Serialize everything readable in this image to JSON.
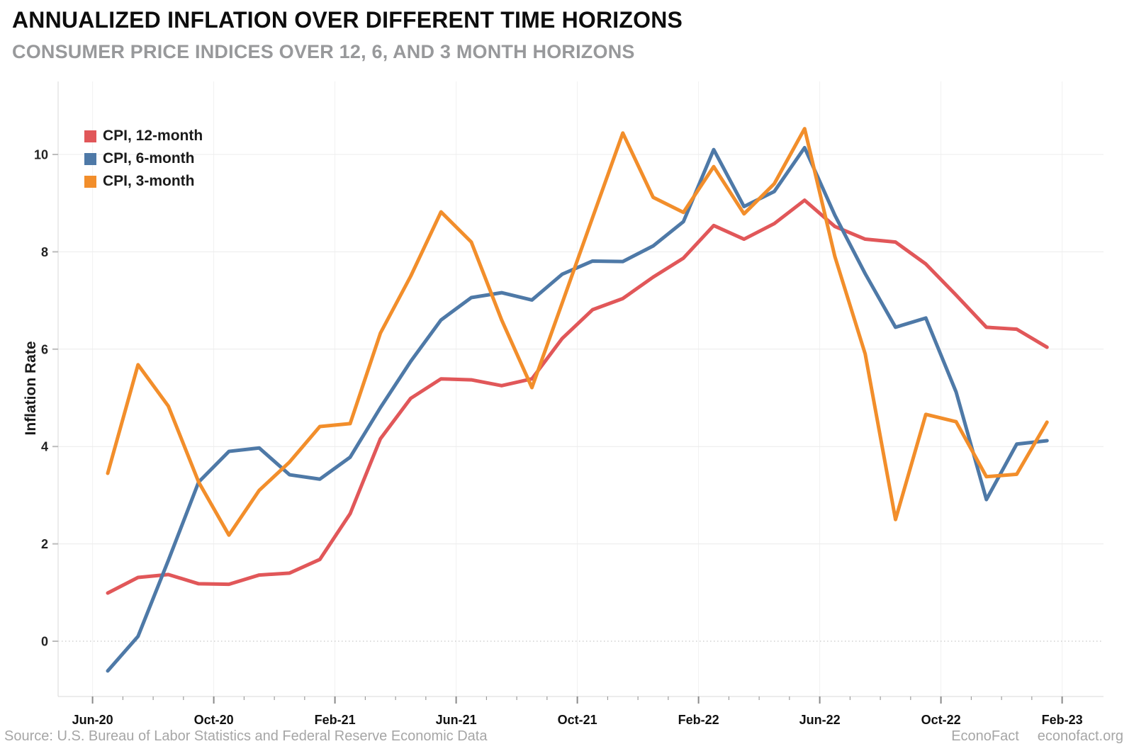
{
  "header": {
    "title": "ANNUALIZED INFLATION OVER DIFFERENT TIME HORIZONS",
    "subtitle": "CONSUMER PRICE INDICES OVER 12, 6, AND 3 MONTH HORIZONS"
  },
  "footer": {
    "source": "Source: U.S. Bureau of Labor Statistics and Federal Reserve Economic Data",
    "brand": "EconoFact",
    "site": "econofact.org"
  },
  "colors": {
    "red": "#e15759",
    "blue": "#4e79a7",
    "orange": "#f28e2b",
    "gridline": "#ececec",
    "zero_line": "#b9b9b9",
    "axis_line": "#d8d8d8",
    "tick": "#8a8a8a"
  },
  "chart_data": {
    "type": "line",
    "title": "ANNUALIZED INFLATION OVER DIFFERENT TIME HORIZONS",
    "subtitle": "CONSUMER PRICE INDICES OVER 12, 6, AND 3 MONTH HORIZONS",
    "xlabel": "",
    "ylabel": "Inflation Rate",
    "ylim": [
      -1.15,
      11.5
    ],
    "grid": "on",
    "legend_position": "top-left",
    "x_tick_labels": [
      "Jun-20",
      "Oct-20",
      "Feb-21",
      "Jun-21",
      "Oct-21",
      "Feb-22",
      "Jun-22",
      "Oct-22",
      "Feb-23"
    ],
    "y_ticks": [
      0,
      2,
      4,
      6,
      8,
      10
    ],
    "x": [
      "Jul-20",
      "Aug-20",
      "Sep-20",
      "Oct-20",
      "Nov-20",
      "Dec-20",
      "Jan-21",
      "Feb-21",
      "Mar-21",
      "Apr-21",
      "May-21",
      "Jun-21",
      "Jul-21",
      "Aug-21",
      "Sep-21",
      "Oct-21",
      "Nov-21",
      "Dec-21",
      "Jan-22",
      "Feb-22",
      "Mar-22",
      "Apr-22",
      "May-22",
      "Jun-22",
      "Jul-22",
      "Aug-22",
      "Sep-22",
      "Oct-22",
      "Nov-22",
      "Dec-22",
      "Jan-23",
      "Feb-23"
    ],
    "series": [
      {
        "name": "CPI, 12-month",
        "color": "#e15759",
        "values": [
          0.99,
          1.31,
          1.37,
          1.18,
          1.17,
          1.36,
          1.4,
          1.68,
          2.62,
          4.16,
          4.99,
          5.39,
          5.37,
          5.25,
          5.39,
          6.22,
          6.81,
          7.04,
          7.48,
          7.87,
          8.54,
          8.26,
          8.58,
          9.06,
          8.52,
          8.26,
          8.2,
          7.75,
          7.11,
          6.45,
          6.41,
          6.04
        ]
      },
      {
        "name": "CPI, 6-month",
        "color": "#4e79a7",
        "values": [
          -0.61,
          0.1,
          1.66,
          3.27,
          3.9,
          3.97,
          3.42,
          3.33,
          3.78,
          4.8,
          5.75,
          6.6,
          7.06,
          7.16,
          7.01,
          7.54,
          7.81,
          7.8,
          8.12,
          8.62,
          10.1,
          8.93,
          9.24,
          10.14,
          8.75,
          7.55,
          6.45,
          6.64,
          5.12,
          2.91,
          4.05,
          4.12
        ]
      },
      {
        "name": "CPI, 3-month",
        "color": "#f28e2b",
        "values": [
          3.45,
          5.68,
          4.83,
          3.27,
          2.18,
          3.1,
          3.68,
          4.41,
          4.47,
          6.33,
          7.5,
          8.82,
          8.2,
          6.6,
          5.21,
          6.95,
          8.7,
          10.44,
          9.12,
          8.81,
          9.75,
          8.78,
          9.4,
          10.53,
          7.9,
          5.9,
          2.5,
          4.66,
          4.51,
          3.38,
          3.43,
          4.5
        ]
      }
    ]
  }
}
